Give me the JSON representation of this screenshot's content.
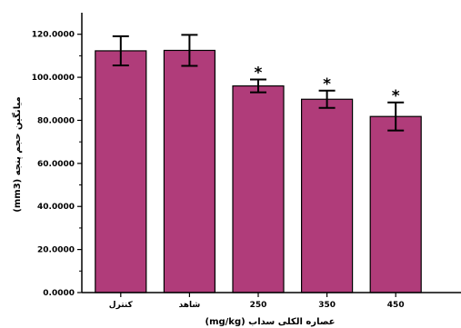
{
  "chart_data": {
    "type": "bar",
    "categories": [
      "کنترل",
      "شاهد",
      "250",
      "350",
      "450"
    ],
    "values": [
      112.3,
      112.5,
      96.0,
      89.8,
      81.8
    ],
    "errors": [
      6.8,
      7.2,
      3.0,
      4.0,
      6.5
    ],
    "significance": [
      "",
      "",
      "*",
      "*",
      "*"
    ],
    "xlabel": "عصاره الکلی سداب (mg/kg)",
    "ylabel": "میانگین حجم پنجه (mm3)",
    "ylim": [
      0,
      130
    ],
    "yticks": [
      "0.0000",
      "20.0000",
      "40.0000",
      "60.0000",
      "80.0000",
      "100.0000",
      "120.0000"
    ],
    "bar_color": "#b03c7a",
    "grid": false,
    "legend": "none"
  }
}
